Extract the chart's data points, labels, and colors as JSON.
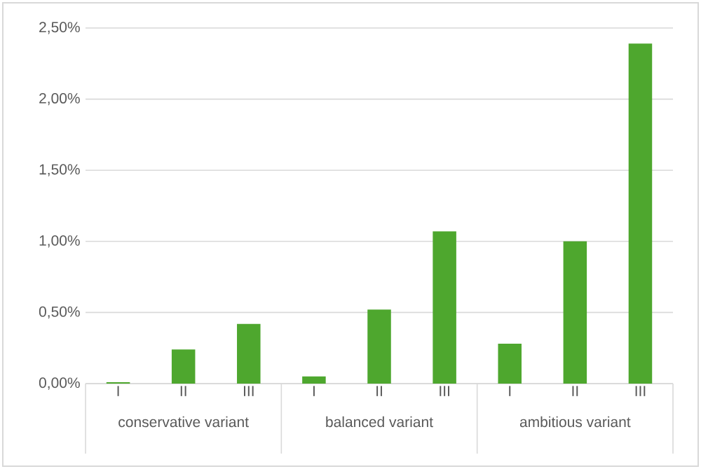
{
  "chart_data": {
    "type": "bar",
    "categories": [
      "I",
      "II",
      "III",
      "I",
      "II",
      "III",
      "I",
      "II",
      "III"
    ],
    "values": [
      0.01,
      0.24,
      0.42,
      0.05,
      0.52,
      1.07,
      0.28,
      1.0,
      2.39
    ],
    "color": "#4ea72e",
    "ylim": [
      0,
      2.5
    ],
    "yticks": [
      {
        "value": 0,
        "label": "0,00%"
      },
      {
        "value": 0.5,
        "label": "0,50%"
      },
      {
        "value": 1,
        "label": "1,00%"
      },
      {
        "value": 1.5,
        "label": "1,50%"
      },
      {
        "value": 2,
        "label": "2,00%"
      },
      {
        "value": 2.5,
        "label": "2,50%"
      }
    ],
    "annotations": [
      "conservative variant",
      "balanced variant",
      "ambitious variant"
    ],
    "grid": "y"
  }
}
